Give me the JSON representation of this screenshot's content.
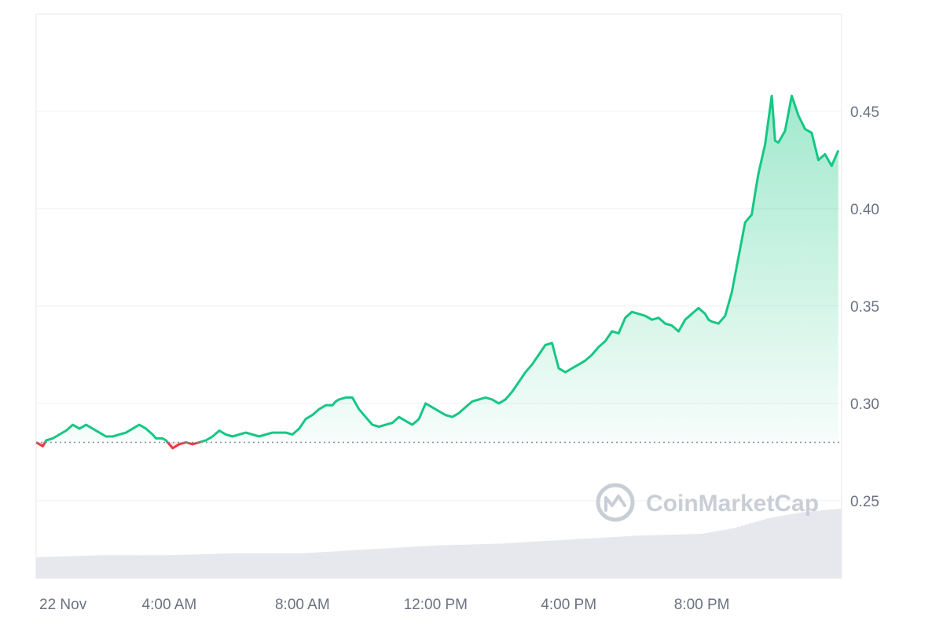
{
  "chart_data": {
    "type": "line",
    "title": "",
    "xlabel": "",
    "ylabel": "",
    "x_ticks": [
      "22 Nov",
      "4:00 AM",
      "8:00 AM",
      "12:00 PM",
      "4:00 PM",
      "8:00 PM"
    ],
    "x_tick_hours": [
      0,
      4,
      8,
      12,
      16,
      20
    ],
    "x_range_hours": [
      0,
      24.2
    ],
    "ylim": [
      0.21,
      0.5
    ],
    "y_ticks": [
      0.25,
      0.3,
      0.35,
      0.4,
      0.45
    ],
    "y_axis_side": "right",
    "grid": true,
    "baseline_value": 0.28,
    "colors": {
      "above": "#16c784",
      "below": "#ea3943",
      "volume": "#e6e8ee",
      "baseline": "#858ca2"
    },
    "series": [
      {
        "x_hours": [
          0,
          0.2,
          0.3,
          0.5,
          0.7,
          0.9,
          1.1,
          1.3,
          1.5,
          1.7,
          1.9,
          2.1,
          2.3,
          2.5,
          2.7,
          2.9,
          3.1,
          3.3,
          3.5,
          3.6,
          3.8,
          3.9,
          4.1,
          4.3,
          4.5,
          4.7,
          4.9,
          5.1,
          5.3,
          5.5,
          5.7,
          5.9,
          6.1,
          6.3,
          6.5,
          6.7,
          6.9,
          7.1,
          7.3,
          7.5,
          7.7,
          7.9,
          8.1,
          8.3,
          8.5,
          8.7,
          8.9,
          9.0,
          9.1,
          9.3,
          9.5,
          9.7,
          9.9,
          10.1,
          10.3,
          10.5,
          10.7,
          10.9,
          11.1,
          11.3,
          11.5,
          11.7,
          11.9,
          12.1,
          12.3,
          12.5,
          12.7,
          12.9,
          13.1,
          13.3,
          13.5,
          13.7,
          13.9,
          14.1,
          14.3,
          14.5,
          14.7,
          14.9,
          15.1,
          15.3,
          15.5,
          15.7,
          15.9,
          16.1,
          16.3,
          16.5,
          16.7,
          16.9,
          17.1,
          17.3,
          17.5,
          17.7,
          17.9,
          18.1,
          18.3,
          18.5,
          18.7,
          18.9,
          19.1,
          19.3,
          19.5,
          19.7,
          19.9,
          20.1,
          20.2,
          20.3,
          20.5,
          20.7,
          20.9,
          21.1,
          21.3,
          21.5,
          21.6,
          21.7,
          21.9,
          22.1,
          22.2,
          22.3,
          22.5,
          22.7,
          22.9,
          23.1,
          23.3,
          23.5,
          23.7,
          23.9,
          24.1
        ],
        "y": [
          0.28,
          0.278,
          0.281,
          0.282,
          0.284,
          0.286,
          0.289,
          0.287,
          0.289,
          0.287,
          0.285,
          0.283,
          0.283,
          0.284,
          0.285,
          0.287,
          0.289,
          0.287,
          0.284,
          0.282,
          0.282,
          0.281,
          0.277,
          0.279,
          0.28,
          0.279,
          0.28,
          0.281,
          0.283,
          0.286,
          0.284,
          0.283,
          0.284,
          0.285,
          0.284,
          0.283,
          0.284,
          0.285,
          0.285,
          0.285,
          0.284,
          0.287,
          0.292,
          0.294,
          0.297,
          0.299,
          0.299,
          0.301,
          0.302,
          0.303,
          0.303,
          0.297,
          0.293,
          0.289,
          0.288,
          0.289,
          0.29,
          0.293,
          0.291,
          0.289,
          0.292,
          0.3,
          0.298,
          0.296,
          0.294,
          0.293,
          0.295,
          0.298,
          0.301,
          0.302,
          0.303,
          0.302,
          0.3,
          0.302,
          0.306,
          0.311,
          0.316,
          0.32,
          0.325,
          0.33,
          0.331,
          0.318,
          0.316,
          0.318,
          0.32,
          0.322,
          0.325,
          0.329,
          0.332,
          0.337,
          0.336,
          0.344,
          0.347,
          0.346,
          0.345,
          0.343,
          0.344,
          0.341,
          0.34,
          0.337,
          0.343,
          0.346,
          0.349,
          0.346,
          0.343,
          0.342,
          0.341,
          0.345,
          0.357,
          0.375,
          0.393,
          0.397,
          0.408,
          0.418,
          0.433,
          0.458,
          0.435,
          0.434,
          0.44,
          0.458,
          0.448,
          0.441,
          0.439,
          0.425,
          0.428,
          0.422,
          0.43
        ]
      }
    ],
    "volume": {
      "x_hours": [
        0,
        2,
        4,
        6,
        8,
        10,
        12,
        14,
        16,
        18,
        20,
        21,
        22,
        23,
        24.2
      ],
      "values": [
        0.221,
        0.222,
        0.222,
        0.223,
        0.223,
        0.225,
        0.227,
        0.228,
        0.23,
        0.232,
        0.233,
        0.236,
        0.241,
        0.244,
        0.246
      ]
    }
  },
  "watermark": {
    "text": "CoinMarketCap",
    "icon": "coinmarketcap-logo-icon"
  }
}
